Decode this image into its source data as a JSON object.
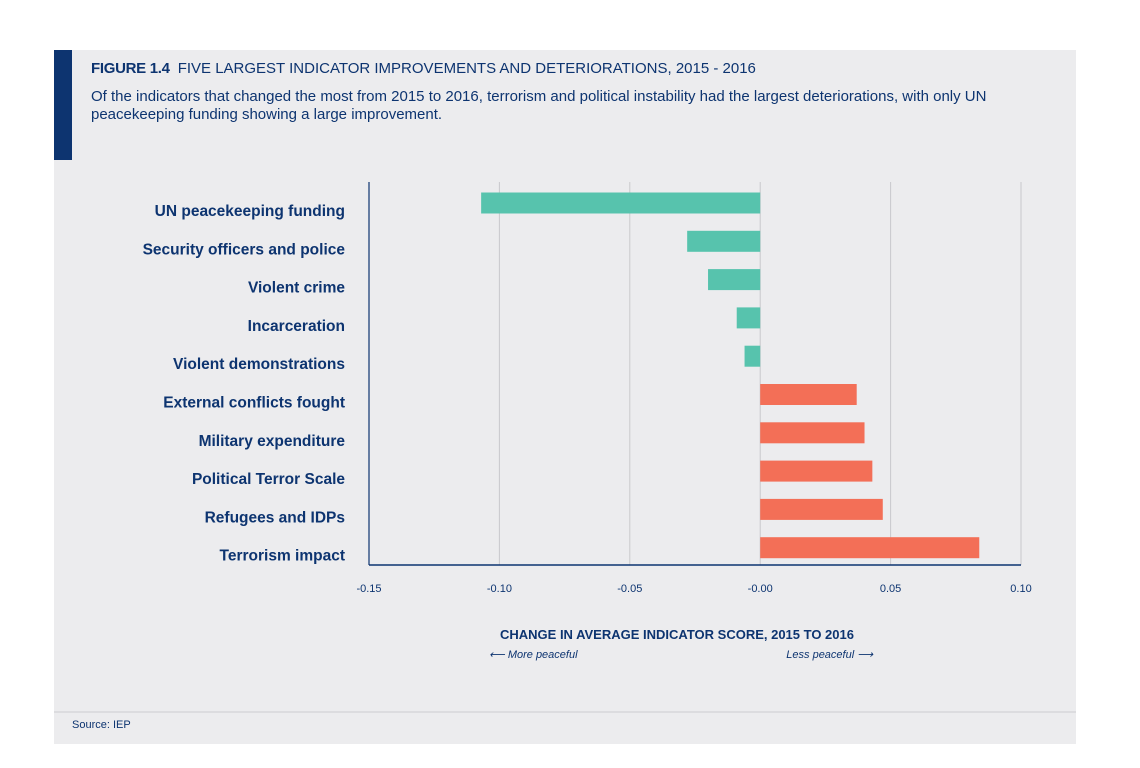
{
  "figure": {
    "number": "FIGURE 1.4",
    "title": "FIVE LARGEST INDICATOR IMPROVEMENTS AND DETERIORATIONS, 2015 - 2016",
    "subtitle": "Of the indicators that changed the most from 2015 to 2016, terrorism and political instability had the largest deteriorations, with only UN peacekeeping funding showing a large improvement.",
    "source": "Source: IEP"
  },
  "colors": {
    "improvement": "#57c3ad",
    "deterioration": "#f36f57",
    "text": "#0d3470",
    "grid": "#c9c9cc",
    "axis": "#0d3470"
  },
  "chart_data": {
    "type": "bar",
    "orientation": "horizontal",
    "categories": [
      "UN peacekeeping funding",
      "Security officers and police",
      "Violent crime",
      "Incarceration",
      "Violent demonstrations",
      "External conflicts fought",
      "Military expenditure",
      "Political Terror Scale",
      "Refugees and IDPs",
      "Terrorism impact"
    ],
    "values": [
      -0.107,
      -0.028,
      -0.02,
      -0.009,
      -0.006,
      0.037,
      0.04,
      0.043,
      0.047,
      0.084
    ],
    "xlim": [
      -0.15,
      0.1
    ],
    "xticks": [
      -0.15,
      -0.1,
      -0.05,
      0.0,
      0.05,
      0.1
    ],
    "xtick_labels": [
      "-0.15",
      "-0.10",
      "-0.05",
      "-0.00",
      "0.05",
      "0.10"
    ],
    "xlabel": "CHANGE IN AVERAGE INDICATOR SCORE, 2015 TO 2016",
    "xlabel_left_note": "⟵ More peaceful",
    "xlabel_right_note": "Less peaceful ⟶",
    "grid": true
  }
}
